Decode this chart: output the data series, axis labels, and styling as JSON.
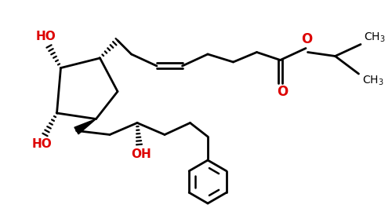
{
  "background_color": "#ffffff",
  "bond_color": "#000000",
  "ho_color": "#dd0000",
  "o_color": "#dd0000",
  "line_width": 2.0,
  "figsize": [
    5.0,
    2.84
  ],
  "dpi": 100,
  "xlim": [
    0,
    10
  ],
  "ylim": [
    0,
    5.68
  ]
}
